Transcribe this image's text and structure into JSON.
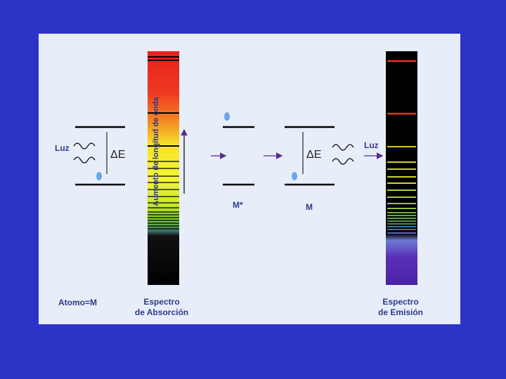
{
  "diagram": {
    "atom_label": "Atomo=M",
    "absorption_caption": [
      "Espectro",
      "de Absorción"
    ],
    "emission_caption": [
      "Espectro",
      "de Emisión"
    ],
    "light_left": "Luz",
    "light_right": "Luz",
    "delta_e_left": "ΔE",
    "delta_e_right": "ΔE",
    "axis_label": "Aumento de longitud de onda",
    "excited_label": "M*",
    "ground_label": "M"
  },
  "colors": {
    "background": "#2e33c8",
    "panel": "#e8eef9",
    "text": "#2c3a8a",
    "electron": "#6aa7ee",
    "arrow": "#5a2a8c"
  }
}
